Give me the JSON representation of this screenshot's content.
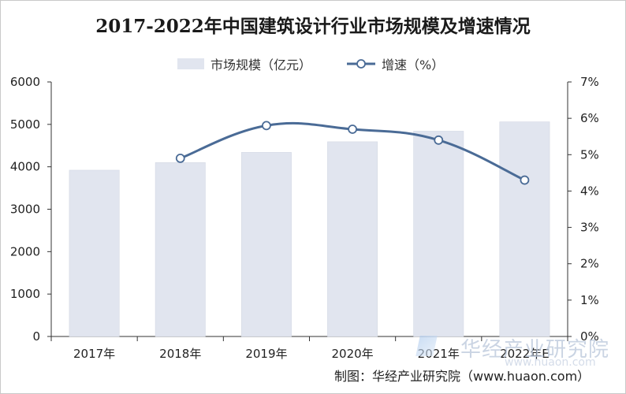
{
  "chart_data": {
    "type": "bar",
    "title": "2017-2022年中国建筑设计行业市场规模及增速情况",
    "categories": [
      "2017年",
      "2018年",
      "2019年",
      "2020年",
      "2021年",
      "2022年E"
    ],
    "series": [
      {
        "name": "市场规模（亿元）",
        "type": "bar",
        "axis": "left",
        "color": "#e1e5ef",
        "values": [
          3920,
          4100,
          4340,
          4590,
          4840,
          5060
        ]
      },
      {
        "name": "增速（%）",
        "type": "line",
        "axis": "right",
        "color": "#4a6b96",
        "values": [
          null,
          4.9,
          5.8,
          5.7,
          5.4,
          4.3
        ]
      }
    ],
    "y_left": {
      "min": 0,
      "max": 6000,
      "ticks": [
        0,
        1000,
        2000,
        3000,
        4000,
        5000,
        6000
      ]
    },
    "y_right": {
      "min": 0,
      "max": 7,
      "ticks": [
        "0%",
        "1%",
        "2%",
        "3%",
        "4%",
        "5%",
        "6%",
        "7%"
      ]
    }
  },
  "legend": {
    "bar_label": "市场规模（亿元）",
    "line_label": "增速（%）"
  },
  "source_text": "制图：华经产业研究院（www.huaon.com）",
  "watermark": {
    "brand": "华经产业研究院",
    "url": "www.huaon.com"
  }
}
